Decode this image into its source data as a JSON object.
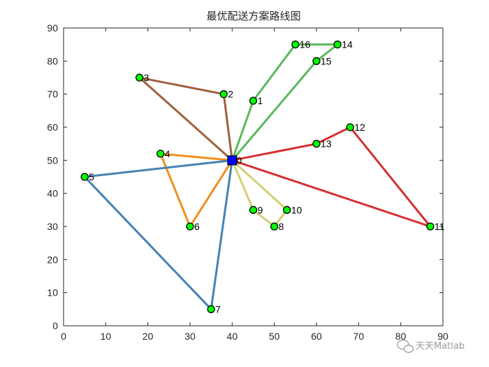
{
  "chart_data": {
    "type": "line",
    "title": "最优配送方案路线图",
    "xlim": [
      0,
      90
    ],
    "ylim": [
      0,
      90
    ],
    "x_ticks": [
      "0",
      "10",
      "20",
      "30",
      "40",
      "50",
      "60",
      "70",
      "80",
      "90"
    ],
    "y_ticks": [
      "0",
      "10",
      "20",
      "30",
      "40",
      "50",
      "60",
      "70",
      "80",
      "90"
    ],
    "grid": false,
    "depot": {
      "label": "0",
      "x": 40,
      "y": 50,
      "color": "#0000ff"
    },
    "customers": [
      {
        "label": "1",
        "x": 45,
        "y": 68
      },
      {
        "label": "2",
        "x": 38,
        "y": 70
      },
      {
        "label": "3",
        "x": 18,
        "y": 75
      },
      {
        "label": "4",
        "x": 23,
        "y": 52
      },
      {
        "label": "5",
        "x": 5,
        "y": 45
      },
      {
        "label": "6",
        "x": 30,
        "y": 30
      },
      {
        "label": "7",
        "x": 35,
        "y": 5
      },
      {
        "label": "8",
        "x": 50,
        "y": 30
      },
      {
        "label": "9",
        "x": 45,
        "y": 35
      },
      {
        "label": "10",
        "x": 53,
        "y": 35
      },
      {
        "label": "11",
        "x": 87,
        "y": 30
      },
      {
        "label": "12",
        "x": 68,
        "y": 60
      },
      {
        "label": "13",
        "x": 60,
        "y": 55
      },
      {
        "label": "14",
        "x": 65,
        "y": 85
      },
      {
        "label": "15",
        "x": 60,
        "y": 80
      },
      {
        "label": "16",
        "x": 55,
        "y": 85
      }
    ],
    "customer_color": "#00ff00",
    "routes": [
      {
        "color": "#d62f2f",
        "stops": [
          0,
          13,
          12,
          11,
          0
        ]
      },
      {
        "color": "#5cb85c",
        "stops": [
          0,
          1,
          16,
          14,
          15,
          0
        ]
      },
      {
        "color": "#a0603c",
        "stops": [
          0,
          2,
          3,
          0
        ]
      },
      {
        "color": "#f28e1c",
        "stops": [
          0,
          4,
          6,
          0
        ]
      },
      {
        "color": "#4682b4",
        "stops": [
          0,
          5,
          7,
          0
        ]
      },
      {
        "color": "#d4cf73",
        "stops": [
          0,
          9,
          8,
          10,
          0
        ]
      }
    ]
  },
  "watermark": {
    "text": "天天Matlab",
    "icon": "wechat-icon"
  }
}
